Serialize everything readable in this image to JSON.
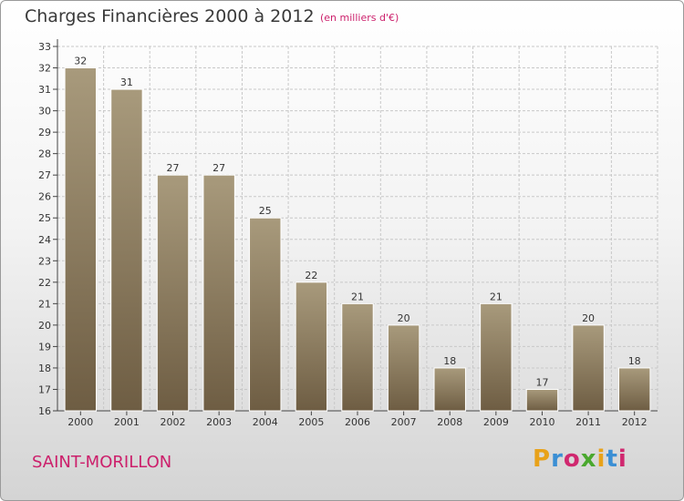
{
  "header": {
    "title": "Charges Financières 2000 à 2012",
    "subtitle": "(en milliers d'€)"
  },
  "footer": {
    "commune": "SAINT-MORILLON",
    "logo_text": "Proxiti",
    "logo_colors": [
      "#e8a21a",
      "#3b8fd4",
      "#d0286f",
      "#4aa82e",
      "#e8a21a",
      "#3b8fd4",
      "#d0286f"
    ]
  },
  "colors": {
    "bar_top": "#a89a7c",
    "bar_bottom": "#6e5d43",
    "bar_stroke": "#ffffff",
    "grid": "#c8c8c8",
    "axis": "#444444",
    "text": "#333333"
  },
  "chart_data": {
    "type": "bar",
    "title": "Charges Financières 2000 à 2012",
    "subtitle": "(en milliers d'€)",
    "xlabel": "",
    "ylabel": "",
    "categories": [
      "2000",
      "2001",
      "2002",
      "2003",
      "2004",
      "2005",
      "2006",
      "2007",
      "2008",
      "2009",
      "2010",
      "2011",
      "2012"
    ],
    "values": [
      32,
      31,
      27,
      27,
      25,
      22,
      21,
      20,
      18,
      21,
      17,
      20,
      18
    ],
    "ylim": [
      16,
      33
    ],
    "yticks": [
      16,
      17,
      18,
      19,
      20,
      21,
      22,
      23,
      24,
      25,
      26,
      27,
      28,
      29,
      30,
      31,
      32,
      33
    ],
    "grid": true,
    "data_labels": true
  }
}
